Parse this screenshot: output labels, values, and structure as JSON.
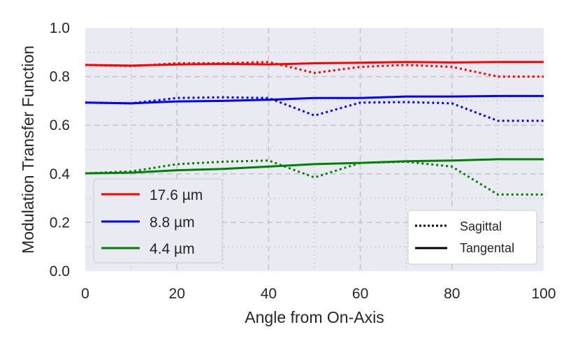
{
  "chart_data": {
    "type": "line",
    "xlabel": "Angle from On-Axis",
    "ylabel": "Modulation Transfer Function",
    "xlim": [
      0,
      100
    ],
    "ylim": [
      0,
      1.0
    ],
    "x_ticks": [
      "0",
      "20",
      "40",
      "60",
      "80",
      "100"
    ],
    "y_ticks": [
      "0.0",
      "0.2",
      "0.4",
      "0.6",
      "0.8",
      "1.0"
    ],
    "grid": true,
    "x": [
      0,
      10,
      20,
      30,
      40,
      50,
      60,
      70,
      80,
      90,
      100
    ],
    "series": [
      {
        "name": "17.6 µm",
        "color": "#ff0000",
        "style": "Tangental",
        "values": [
          0.848,
          0.845,
          0.85,
          0.852,
          0.85,
          0.855,
          0.857,
          0.86,
          0.858,
          0.86,
          0.86
        ]
      },
      {
        "name": "17.6 µm",
        "color": "#ff0000",
        "style": "Sagittal",
        "values": [
          0.848,
          0.843,
          0.855,
          0.855,
          0.86,
          0.815,
          0.84,
          0.848,
          0.84,
          0.8,
          0.8
        ]
      },
      {
        "name": "8.8 µm",
        "color": "#0000ff",
        "style": "Tangental",
        "values": [
          0.693,
          0.69,
          0.698,
          0.7,
          0.705,
          0.712,
          0.712,
          0.718,
          0.718,
          0.72,
          0.72
        ]
      },
      {
        "name": "8.8 µm",
        "color": "#0000ff",
        "style": "Sagittal",
        "values": [
          0.693,
          0.69,
          0.712,
          0.715,
          0.712,
          0.64,
          0.693,
          0.695,
          0.69,
          0.618,
          0.618
        ]
      },
      {
        "name": "4.4 µm",
        "color": "#008000",
        "style": "Tangental",
        "values": [
          0.402,
          0.405,
          0.415,
          0.42,
          0.43,
          0.44,
          0.445,
          0.452,
          0.455,
          0.46,
          0.46
        ]
      },
      {
        "name": "4.4 µm",
        "color": "#008000",
        "style": "Sagittal",
        "values": [
          0.402,
          0.41,
          0.44,
          0.45,
          0.455,
          0.385,
          0.445,
          0.45,
          0.43,
          0.315,
          0.315
        ]
      }
    ],
    "legend_colors": {
      "position": "lower-left",
      "entries": [
        {
          "label": "17.6 µm",
          "color": "#ff0000"
        },
        {
          "label": "8.8 µm",
          "color": "#0000ff"
        },
        {
          "label": "4.4 µm",
          "color": "#008000"
        }
      ]
    },
    "legend_styles": {
      "position": "lower-right",
      "entries": [
        {
          "label": "Sagittal",
          "dash": "dotted"
        },
        {
          "label": "Tangental",
          "dash": "solid"
        }
      ]
    }
  }
}
